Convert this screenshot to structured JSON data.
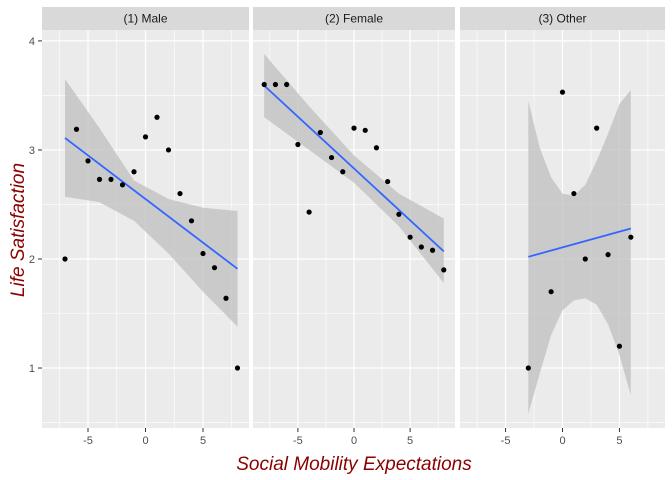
{
  "chart_data": {
    "type": "scatter",
    "xlabel": "Social Mobility Expectations",
    "ylabel": "Life Satisfaction",
    "xlim": [
      -9,
      9
    ],
    "ylim": [
      0.45,
      4.1
    ],
    "x_ticks": [
      -5,
      0,
      5
    ],
    "y_ticks": [
      1,
      2,
      3,
      4
    ],
    "grid": true,
    "colors": {
      "panel_bg": "#ebebeb",
      "strip_bg": "#d9d9d9",
      "grid": "#ffffff",
      "point": "#000000",
      "fit_line": "#3366ff",
      "ribbon": "#bfbfbf",
      "axis_title": "#8b0000"
    },
    "panels": [
      {
        "label": "(1) Male",
        "points": [
          {
            "x": -7,
            "y": 2.0
          },
          {
            "x": -6,
            "y": 3.19
          },
          {
            "x": -5,
            "y": 2.9
          },
          {
            "x": -4,
            "y": 2.73
          },
          {
            "x": -3,
            "y": 2.73
          },
          {
            "x": -2,
            "y": 2.68
          },
          {
            "x": -1,
            "y": 2.8
          },
          {
            "x": 0,
            "y": 3.12
          },
          {
            "x": 1,
            "y": 3.3
          },
          {
            "x": 2,
            "y": 3.0
          },
          {
            "x": 3,
            "y": 2.6
          },
          {
            "x": 4,
            "y": 2.35
          },
          {
            "x": 5,
            "y": 2.05
          },
          {
            "x": 6,
            "y": 1.92
          },
          {
            "x": 7,
            "y": 1.64
          },
          {
            "x": 8,
            "y": 1.0
          }
        ],
        "fit": {
          "x": [
            -7,
            8
          ],
          "y": [
            3.11,
            1.91
          ]
        },
        "ribbon": {
          "x": [
            -7,
            -4,
            -1,
            2,
            5,
            8
          ],
          "lower": [
            2.57,
            2.52,
            2.35,
            2.05,
            1.7,
            1.38
          ],
          "upper": [
            3.65,
            3.2,
            2.72,
            2.55,
            2.47,
            2.44
          ]
        }
      },
      {
        "label": "(2) Female",
        "points": [
          {
            "x": -8,
            "y": 3.6
          },
          {
            "x": -7,
            "y": 3.6
          },
          {
            "x": -6,
            "y": 3.6
          },
          {
            "x": -5,
            "y": 3.05
          },
          {
            "x": -4,
            "y": 2.43
          },
          {
            "x": -3,
            "y": 3.16
          },
          {
            "x": -2,
            "y": 2.93
          },
          {
            "x": -1,
            "y": 2.8
          },
          {
            "x": 0,
            "y": 3.2
          },
          {
            "x": 1,
            "y": 3.18
          },
          {
            "x": 2,
            "y": 3.02
          },
          {
            "x": 3,
            "y": 2.71
          },
          {
            "x": 4,
            "y": 2.41
          },
          {
            "x": 5,
            "y": 2.2
          },
          {
            "x": 6,
            "y": 2.11
          },
          {
            "x": 7,
            "y": 2.08
          },
          {
            "x": 8,
            "y": 1.9
          }
        ],
        "fit": {
          "x": [
            -8,
            8
          ],
          "y": [
            3.59,
            2.07
          ]
        },
        "ribbon": {
          "x": [
            -8,
            -4,
            0,
            4,
            8
          ],
          "lower": [
            3.3,
            3.0,
            2.7,
            2.3,
            1.78
          ],
          "upper": [
            3.88,
            3.4,
            2.95,
            2.6,
            2.37
          ]
        }
      },
      {
        "label": "(3) Other",
        "points": [
          {
            "x": -3,
            "y": 1.0
          },
          {
            "x": -1,
            "y": 1.7
          },
          {
            "x": 0,
            "y": 3.53
          },
          {
            "x": 1,
            "y": 2.6
          },
          {
            "x": 2,
            "y": 2.0
          },
          {
            "x": 3,
            "y": 3.2
          },
          {
            "x": 4,
            "y": 2.04
          },
          {
            "x": 5,
            "y": 1.2
          },
          {
            "x": 6,
            "y": 2.2
          }
        ],
        "fit": {
          "x": [
            -3,
            6
          ],
          "y": [
            2.02,
            2.28
          ]
        },
        "ribbon": {
          "x": [
            -3,
            -2,
            -1,
            0,
            1,
            2,
            3,
            4,
            5,
            6
          ],
          "lower": [
            0.58,
            0.95,
            1.3,
            1.53,
            1.62,
            1.64,
            1.58,
            1.4,
            1.12,
            0.75
          ],
          "upper": [
            3.45,
            3.02,
            2.75,
            2.6,
            2.58,
            2.68,
            2.9,
            3.15,
            3.42,
            3.55
          ]
        }
      }
    ]
  }
}
